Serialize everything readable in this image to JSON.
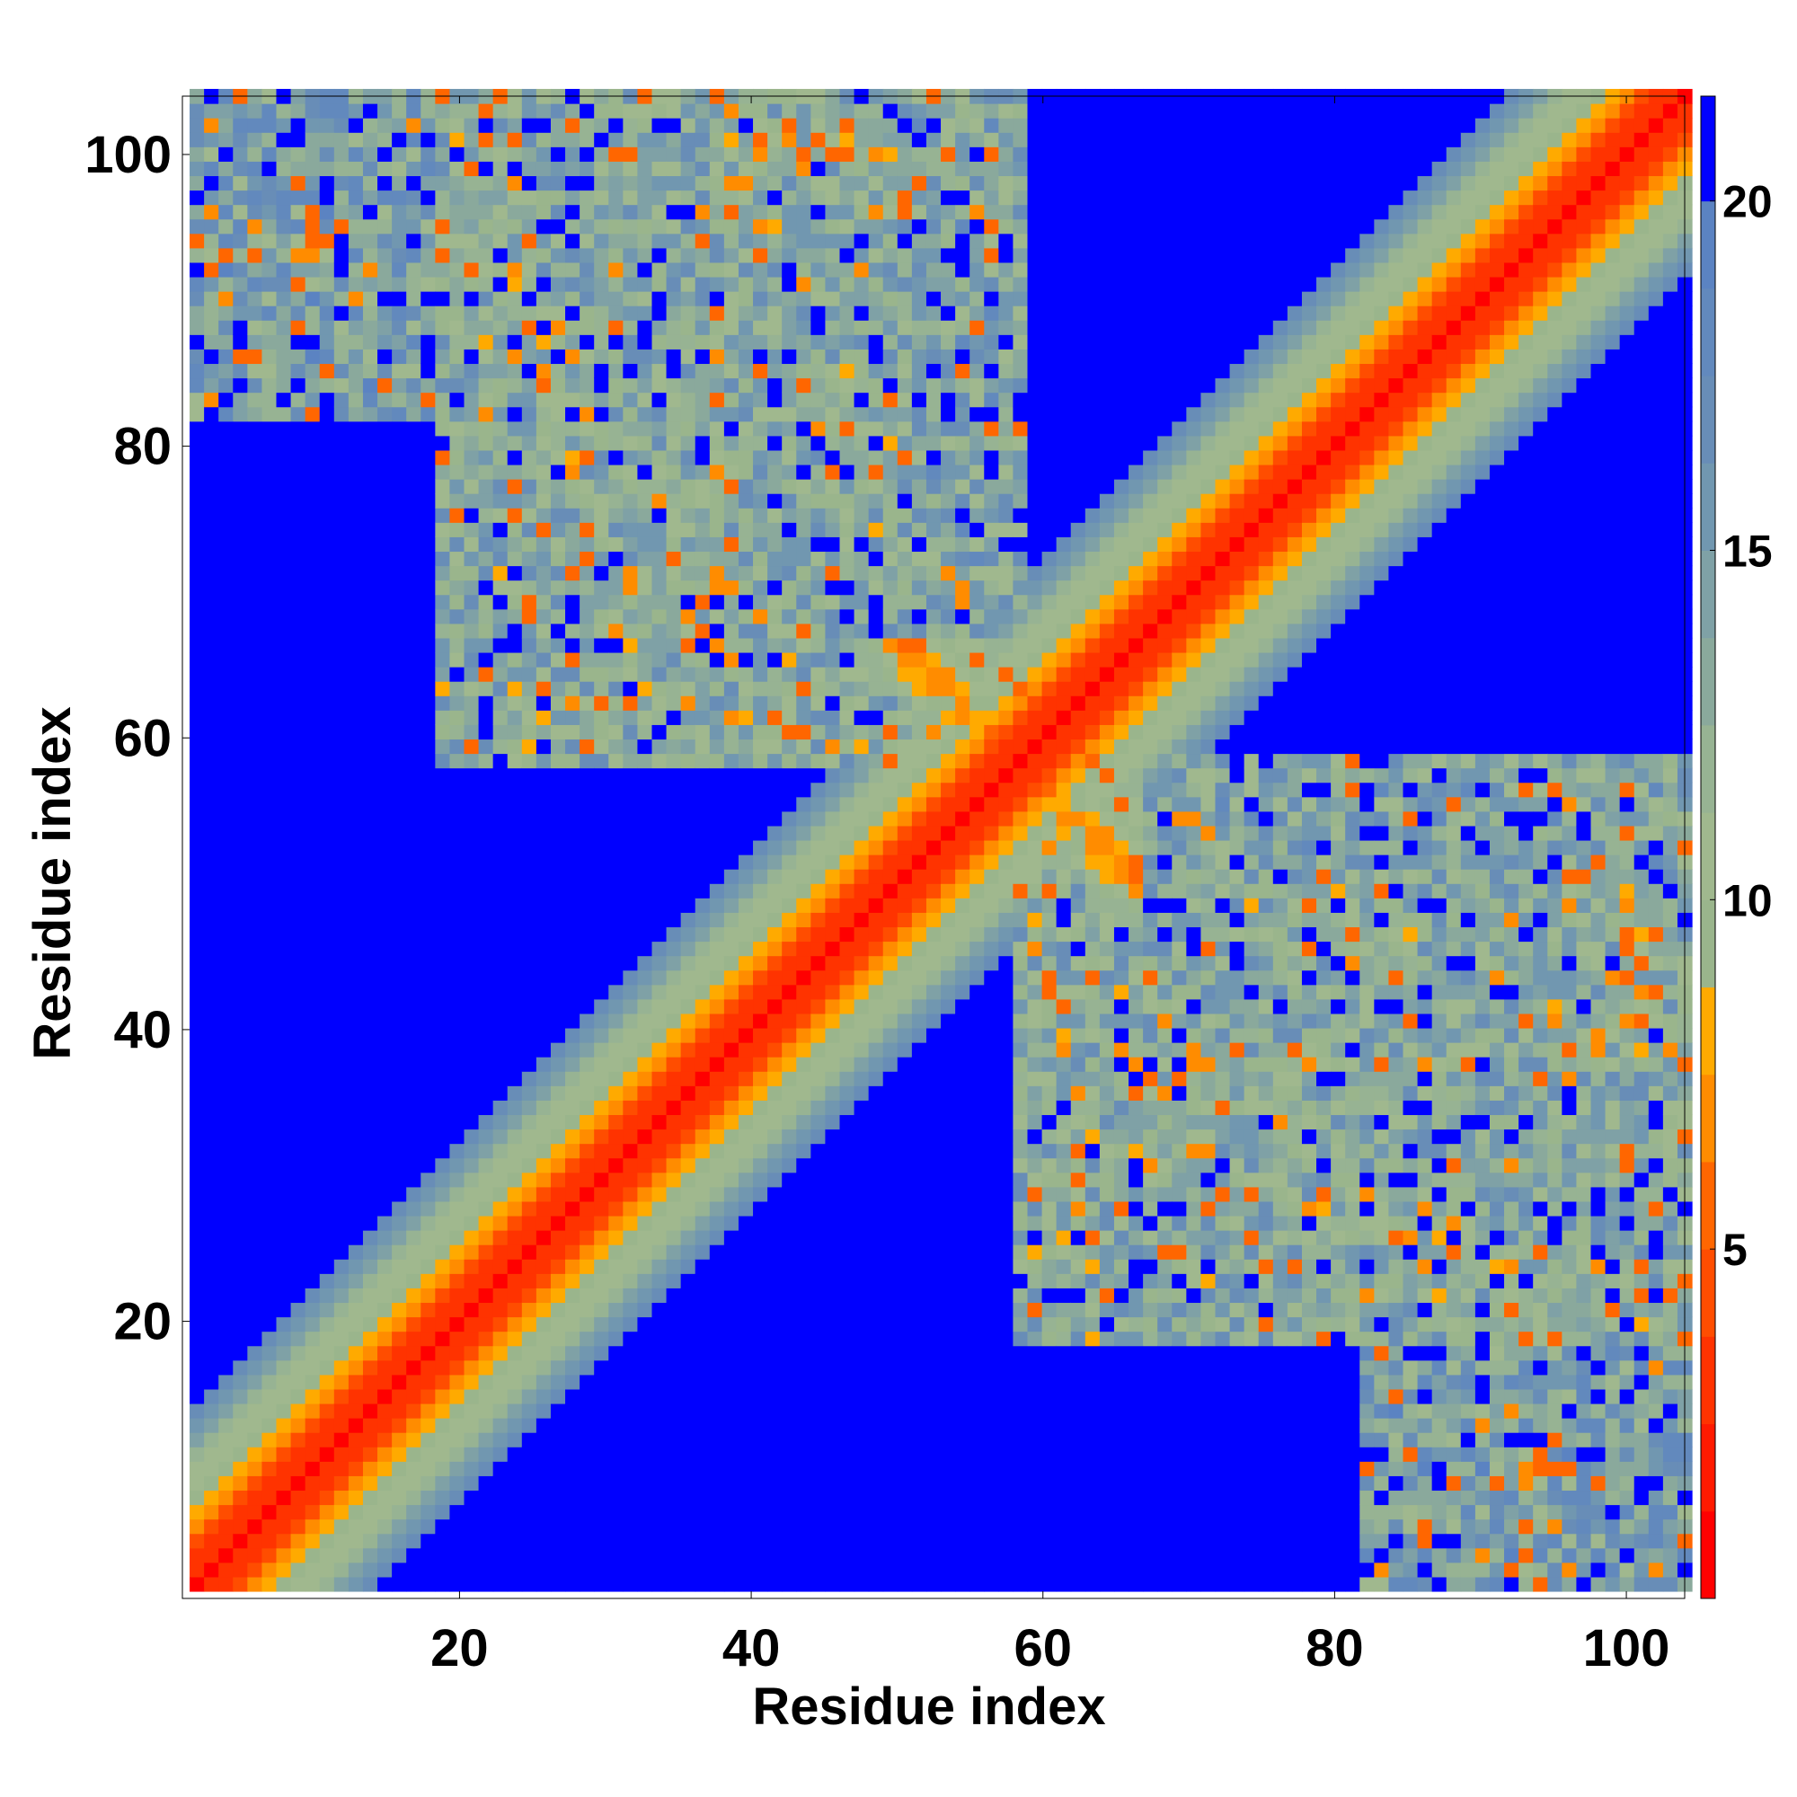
{
  "chart_data": {
    "type": "heatmap",
    "title": "",
    "xlabel": "Residue index",
    "ylabel": "Residue index",
    "n_residues": 104,
    "xlim": [
      1,
      104
    ],
    "ylim": [
      1,
      104
    ],
    "xticks": [
      20,
      40,
      60,
      80,
      100
    ],
    "yticks": [
      20,
      40,
      60,
      80,
      100
    ],
    "colorbar": {
      "range": [
        0,
        21.5
      ],
      "ticks": [
        5,
        10,
        15,
        20
      ],
      "levels": [
        {
          "to": 1.25,
          "color": "#ff0000"
        },
        {
          "to": 2.5,
          "color": "#ff1a00"
        },
        {
          "to": 3.75,
          "color": "#ff3300"
        },
        {
          "to": 5.0,
          "color": "#ff4d00"
        },
        {
          "to": 6.25,
          "color": "#ff6600"
        },
        {
          "to": 7.5,
          "color": "#ff8c00"
        },
        {
          "to": 8.75,
          "color": "#ffaa00"
        },
        {
          "to": 10.0,
          "color": "#9ab58c"
        },
        {
          "to": 11.25,
          "color": "#a0b88e"
        },
        {
          "to": 12.5,
          "color": "#97b393"
        },
        {
          "to": 13.75,
          "color": "#8aa99c"
        },
        {
          "to": 15.0,
          "color": "#7fa1a6"
        },
        {
          "to": 16.25,
          "color": "#7197b0"
        },
        {
          "to": 17.5,
          "color": "#688db7"
        },
        {
          "to": 18.75,
          "color": "#6289bd"
        },
        {
          "to": 20.0,
          "color": "#5b83c2"
        },
        {
          "to": 21.5,
          "color": "#0000ff"
        }
      ]
    },
    "contact_features": [
      {
        "kind": "diagonal",
        "half_width": 12
      },
      {
        "kind": "antidiagonal_cross",
        "center": [
          58,
          58
        ],
        "half_width": 4,
        "range": [
          48,
          66
        ]
      },
      {
        "kind": "off_diagonal_block",
        "residues_i": [
          18,
          50
        ],
        "residues_j": [
          58,
          104
        ],
        "mean_distance": 13
      },
      {
        "kind": "off_diagonal_block",
        "residues_i": [
          60,
          104
        ],
        "residues_j": [
          20,
          58
        ],
        "mean_distance": 14
      },
      {
        "kind": "off_diagonal_block",
        "residues_i": [
          82,
          104
        ],
        "residues_j": [
          1,
          20
        ],
        "mean_distance": 15
      }
    ]
  }
}
